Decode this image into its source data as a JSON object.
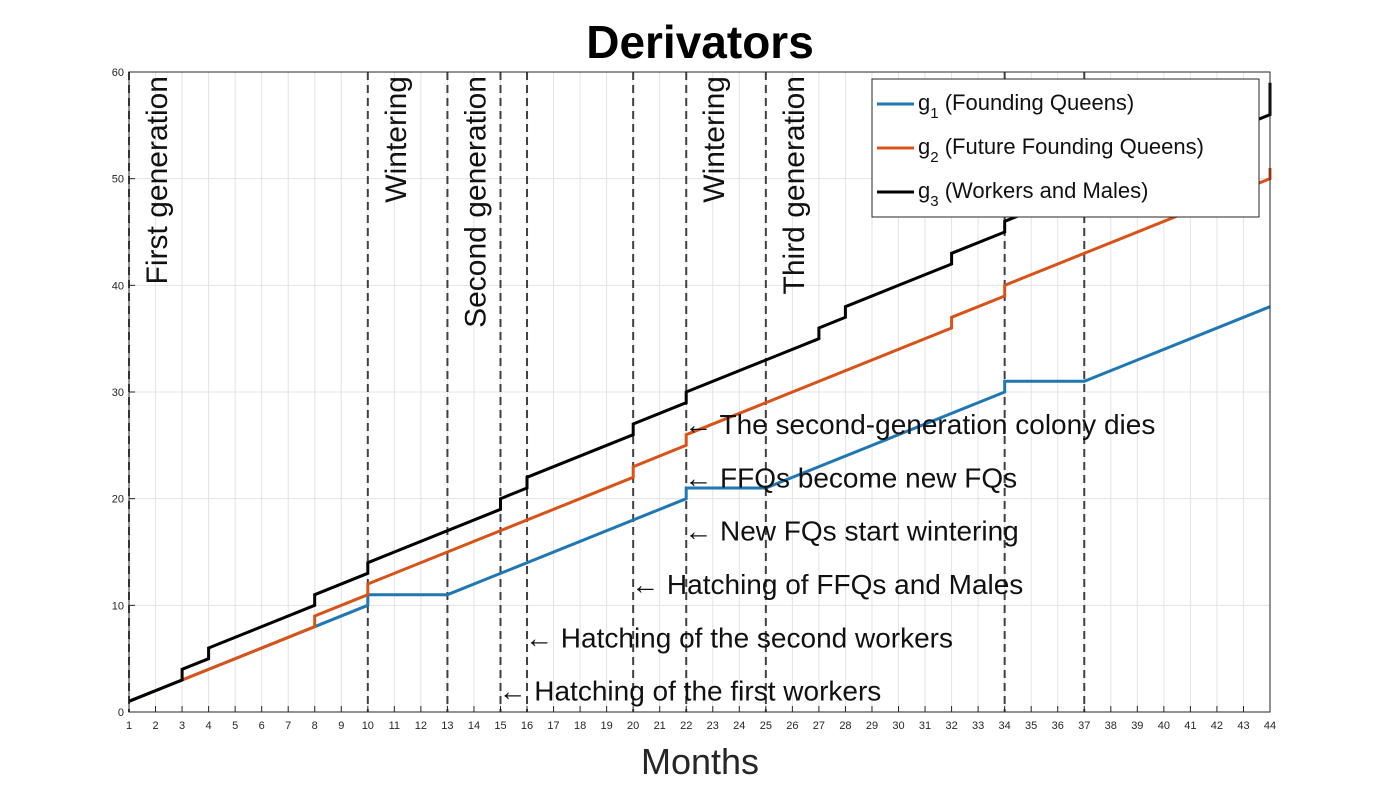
{
  "chart_data": {
    "type": "line",
    "title": "Derivators",
    "xlabel": "Months",
    "ylabel": "",
    "xlim": [
      1,
      44
    ],
    "ylim": [
      0,
      60
    ],
    "x_ticks": [
      1,
      2,
      3,
      4,
      5,
      6,
      7,
      8,
      9,
      10,
      11,
      12,
      13,
      14,
      15,
      16,
      17,
      18,
      19,
      20,
      21,
      22,
      23,
      24,
      25,
      26,
      27,
      28,
      29,
      30,
      31,
      32,
      33,
      34,
      35,
      36,
      37,
      38,
      39,
      40,
      41,
      42,
      43,
      44
    ],
    "y_ticks": [
      0,
      10,
      20,
      30,
      40,
      50,
      60
    ],
    "grid": true,
    "legend_position": "top-right",
    "series": [
      {
        "name": "g",
        "subscript": "1",
        "label_rest": "(Founding Queens)",
        "color": "#1f77b4",
        "points": [
          [
            1,
            1
          ],
          [
            8,
            8
          ],
          [
            8,
            8
          ],
          [
            10,
            10
          ],
          [
            10,
            11
          ],
          [
            13,
            11
          ],
          [
            22,
            20
          ],
          [
            22,
            21
          ],
          [
            25,
            21
          ],
          [
            34,
            30
          ],
          [
            34,
            31
          ],
          [
            37,
            31
          ],
          [
            44,
            38
          ]
        ]
      },
      {
        "name": "g",
        "subscript": "2",
        "label_rest": "(Future Founding Queens)",
        "color": "#d95319",
        "points": [
          [
            1,
            1
          ],
          [
            3,
            3
          ],
          [
            8,
            8
          ],
          [
            8,
            9
          ],
          [
            10,
            11
          ],
          [
            10,
            12
          ],
          [
            20,
            22
          ],
          [
            20,
            23
          ],
          [
            22,
            25
          ],
          [
            22,
            26
          ],
          [
            32,
            36
          ],
          [
            32,
            37
          ],
          [
            34,
            39
          ],
          [
            34,
            40
          ],
          [
            44,
            50
          ],
          [
            44,
            51
          ]
        ]
      },
      {
        "name": "g",
        "subscript": "3",
        "label_rest": "(Workers and Males)",
        "color": "#000000",
        "points": [
          [
            1,
            1
          ],
          [
            3,
            3
          ],
          [
            3,
            4
          ],
          [
            4,
            5
          ],
          [
            4,
            6
          ],
          [
            8,
            10
          ],
          [
            8,
            11
          ],
          [
            10,
            13
          ],
          [
            10,
            14
          ],
          [
            15,
            19
          ],
          [
            15,
            20
          ],
          [
            16,
            21
          ],
          [
            16,
            22
          ],
          [
            20,
            26
          ],
          [
            20,
            27
          ],
          [
            22,
            29
          ],
          [
            22,
            30
          ],
          [
            27,
            35
          ],
          [
            27,
            36
          ],
          [
            28,
            37
          ],
          [
            28,
            38
          ],
          [
            32,
            42
          ],
          [
            32,
            43
          ],
          [
            34,
            45
          ],
          [
            34,
            46
          ],
          [
            44,
            56
          ],
          [
            44,
            59
          ]
        ]
      }
    ],
    "phase_lines": [
      1,
      10,
      13,
      15,
      16,
      20,
      22,
      25,
      34,
      37
    ],
    "phase_labels": [
      {
        "x": 1,
        "text": "First generation"
      },
      {
        "x": 10,
        "text": "Wintering"
      },
      {
        "x": 13,
        "text": "Second generation"
      },
      {
        "x": 22,
        "text": "Wintering"
      },
      {
        "x": 25,
        "text": "Third generation"
      }
    ],
    "annotations": [
      {
        "x": 22,
        "y": 27,
        "text": "The second-generation colony dies"
      },
      {
        "x": 22,
        "y": 22,
        "text": "FFQs become new FQs"
      },
      {
        "x": 22,
        "y": 17,
        "text": "New FQs start wintering"
      },
      {
        "x": 20,
        "y": 12,
        "text": "Hatching of FFQs and Males"
      },
      {
        "x": 16,
        "y": 7,
        "text": "Hatching of the second workers"
      },
      {
        "x": 15,
        "y": 2,
        "text": "Hatching of the first workers"
      }
    ],
    "arrow_glyph": "←"
  }
}
